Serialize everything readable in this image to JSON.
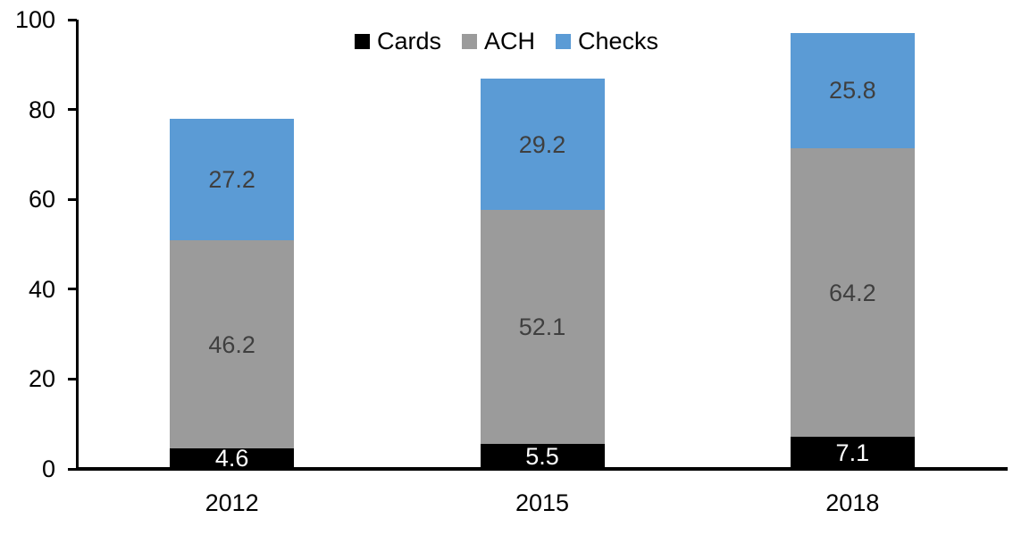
{
  "chart_data": {
    "type": "bar",
    "stacked": true,
    "title": "",
    "xlabel": "",
    "ylabel": "",
    "categories": [
      "2012",
      "2015",
      "2018"
    ],
    "series": [
      {
        "name": "Cards",
        "color": "#000000",
        "label_color": "#FFFFFF",
        "values": [
          4.6,
          5.5,
          7.1
        ]
      },
      {
        "name": "ACH",
        "color": "#9B9B9B",
        "label_color": "#3F3F3F",
        "values": [
          46.2,
          52.1,
          64.2
        ]
      },
      {
        "name": "Checks",
        "color": "#5B9BD5",
        "label_color": "#3F3F3F",
        "values": [
          27.2,
          29.2,
          25.8
        ]
      }
    ],
    "ylim": [
      0,
      100
    ],
    "yticks": [
      0,
      20,
      40,
      60,
      80,
      100
    ],
    "grid": false,
    "legend_position": "top",
    "axis_color": "#000000",
    "background_color": "#FFFFFF"
  }
}
